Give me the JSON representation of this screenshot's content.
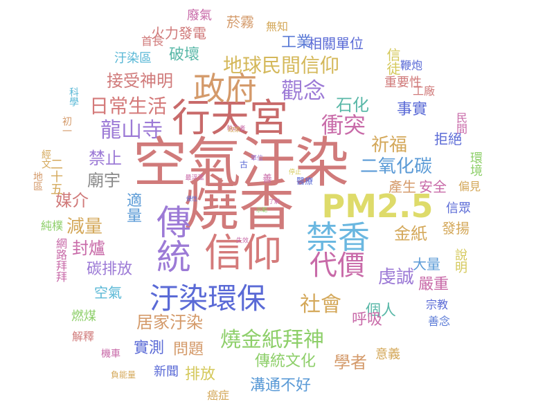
{
  "words": [
    {
      "id": "kongqi-wuran",
      "text": "空氣汙染",
      "color": "#d07a7a",
      "vertical": false
    },
    {
      "id": "shaoxiang",
      "text": "燒香",
      "color": "#d07a7a",
      "vertical": false
    },
    {
      "id": "xingtiangong",
      "text": "行天宮",
      "color": "#c86a6a",
      "vertical": false
    },
    {
      "id": "chuantong",
      "text": "傳統",
      "color": "#9c7ad6",
      "vertical": true
    },
    {
      "id": "xinyang",
      "text": "信仰",
      "color": "#d47a7a",
      "vertical": false
    },
    {
      "id": "pm25",
      "text": "PM2.5",
      "color": "#dedb6a",
      "vertical": false
    },
    {
      "id": "zhengfu",
      "text": "政府",
      "color": "#d49a6a",
      "vertical": false
    },
    {
      "id": "wuran-huanbao",
      "text": "汙染環保",
      "color": "#5a6ad6",
      "vertical": false
    },
    {
      "id": "jinxiang",
      "text": "禁香",
      "color": "#6ab7e0",
      "vertical": false
    },
    {
      "id": "daijia",
      "text": "代價",
      "color": "#c86aa8",
      "vertical": false
    },
    {
      "id": "longshansi",
      "text": "龍山寺",
      "color": "#9c7ad6",
      "vertical": false
    },
    {
      "id": "diqiu",
      "text": "地球民間信仰",
      "color": "#d4b85a",
      "vertical": false
    },
    {
      "id": "guannian",
      "text": "觀念",
      "color": "#9c7ad6",
      "vertical": false
    },
    {
      "id": "chongtu",
      "text": "衝突",
      "color": "#c86aa8",
      "vertical": false
    },
    {
      "id": "richang",
      "text": "日常生活",
      "color": "#d47a7a",
      "vertical": false
    },
    {
      "id": "shaojinzhi",
      "text": "燒金紙拜神",
      "color": "#8ecf6a",
      "vertical": false
    },
    {
      "id": "shehui",
      "text": "社會",
      "color": "#d4a85a",
      "vertical": false
    },
    {
      "id": "eryanghuatan",
      "text": "二氧化碳",
      "color": "#5a9ad6",
      "vertical": false
    },
    {
      "id": "shihua",
      "text": "石化",
      "color": "#5ab8a8",
      "vertical": false
    },
    {
      "id": "qifu",
      "text": "祈福",
      "color": "#d4a85a",
      "vertical": false
    },
    {
      "id": "shishi",
      "text": "事實",
      "color": "#5a6ad6",
      "vertical": false
    },
    {
      "id": "jieshou",
      "text": "接受神明",
      "color": "#d07a7a",
      "vertical": false
    },
    {
      "id": "pohuai",
      "text": "破壞",
      "color": "#5ab8a8",
      "vertical": false
    },
    {
      "id": "gongye",
      "text": "工業",
      "color": "#5a7ad6",
      "vertical": false
    },
    {
      "id": "xiangguan",
      "text": "相關單位",
      "color": "#5a6ad6",
      "vertical": false
    },
    {
      "id": "huoli",
      "text": "火力發電",
      "color": "#d07a7a",
      "vertical": false
    },
    {
      "id": "yanwu",
      "text": "菸霧",
      "color": "#d49a6a",
      "vertical": false
    },
    {
      "id": "feiqi",
      "text": "廢氣",
      "color": "#c86aa8",
      "vertical": false
    },
    {
      "id": "wuzhi",
      "text": "無知",
      "color": "#d4a85a",
      "vertical": false
    },
    {
      "id": "shouzhang",
      "text": "首長",
      "color": "#d07a7a",
      "vertical": false
    },
    {
      "id": "wuranqu",
      "text": "汙染區",
      "color": "#5ab8d6",
      "vertical": false
    },
    {
      "id": "xintu",
      "text": "信徒",
      "color": "#d4c85a",
      "vertical": true
    },
    {
      "id": "bianpao",
      "text": "鞭炮",
      "color": "#5a6ad6",
      "vertical": false
    },
    {
      "id": "zhongyaoxing",
      "text": "重要性",
      "color": "#d07a7a",
      "vertical": false
    },
    {
      "id": "gongchang",
      "text": "工廠",
      "color": "#d07a7a",
      "vertical": false
    },
    {
      "id": "jinzhi",
      "text": "禁止",
      "color": "#9c7ad6",
      "vertical": false
    },
    {
      "id": "miaoyu",
      "text": "廟宇",
      "color": "#8a8a8a",
      "vertical": false
    },
    {
      "id": "jujue",
      "text": "拒絕",
      "color": "#5a6ad6",
      "vertical": false
    },
    {
      "id": "chansheng",
      "text": "產生",
      "color": "#d49a6a",
      "vertical": false
    },
    {
      "id": "anquan",
      "text": "安全",
      "color": "#c86aa8",
      "vertical": false
    },
    {
      "id": "meijie",
      "text": "媒介",
      "color": "#d07a7a",
      "vertical": false
    },
    {
      "id": "jianliang",
      "text": "減量",
      "color": "#d4a85a",
      "vertical": false
    },
    {
      "id": "shiliang",
      "text": "適量",
      "color": "#5a9ad6",
      "vertical": true
    },
    {
      "id": "fenglu",
      "text": "封爐",
      "color": "#c86aa8",
      "vertical": false
    },
    {
      "id": "tanpaifang",
      "text": "碳排放",
      "color": "#9c7ad6",
      "vertical": false
    },
    {
      "id": "kongqi",
      "text": "空氣",
      "color": "#5ab8d6",
      "vertical": false
    },
    {
      "id": "jinzhi2",
      "text": "金紙",
      "color": "#d4a85a",
      "vertical": false
    },
    {
      "id": "qiancheng",
      "text": "虔誠",
      "color": "#9c7ad6",
      "vertical": false
    },
    {
      "id": "yanzhong",
      "text": "嚴重",
      "color": "#c86aa8",
      "vertical": false
    },
    {
      "id": "daliang",
      "text": "大量",
      "color": "#5a9ad6",
      "vertical": false
    },
    {
      "id": "geren",
      "text": "個人",
      "color": "#5ab8a8",
      "vertical": false
    },
    {
      "id": "huxi",
      "text": "呼吸",
      "color": "#c86aa8",
      "vertical": false
    },
    {
      "id": "zongjiao",
      "text": "宗教",
      "color": "#5a6ad6",
      "vertical": false
    },
    {
      "id": "shannian",
      "text": "善念",
      "color": "#5a7ad6",
      "vertical": false
    },
    {
      "id": "fayang",
      "text": "發揚",
      "color": "#d4a85a",
      "vertical": false
    },
    {
      "id": "xinzhong",
      "text": "信眾",
      "color": "#5a6ad6",
      "vertical": false
    },
    {
      "id": "pianjian",
      "text": "偏見",
      "color": "#d4a85a",
      "vertical": false
    },
    {
      "id": "huanjing",
      "text": "環境",
      "color": "#8ecf6a",
      "vertical": true
    },
    {
      "id": "minjian",
      "text": "民間",
      "color": "#c86aa8",
      "vertical": true
    },
    {
      "id": "shuoming",
      "text": "說明",
      "color": "#d4c85a",
      "vertical": true
    },
    {
      "id": "ranmei",
      "text": "燃煤",
      "color": "#8ecf6a",
      "vertical": false
    },
    {
      "id": "jiashi",
      "text": "居家汙染",
      "color": "#d49a6a",
      "vertical": false
    },
    {
      "id": "shice",
      "text": "實測",
      "color": "#5a6ad6",
      "vertical": false
    },
    {
      "id": "wenti",
      "text": "問題",
      "color": "#d49a6a",
      "vertical": false
    },
    {
      "id": "jieshi",
      "text": "解釋",
      "color": "#d07a7a",
      "vertical": false
    },
    {
      "id": "chuantongwenhua",
      "text": "傳統文化",
      "color": "#8ecf6a",
      "vertical": false
    },
    {
      "id": "xuezhe",
      "text": "學者",
      "color": "#d49a6a",
      "vertical": false
    },
    {
      "id": "yiyi",
      "text": "意義",
      "color": "#d4a85a",
      "vertical": false
    },
    {
      "id": "paifang",
      "text": "排放",
      "color": "#d4c85a",
      "vertical": false
    },
    {
      "id": "xinwen",
      "text": "新聞",
      "color": "#5a6ad6",
      "vertical": false
    },
    {
      "id": "goutong",
      "text": "溝通不好",
      "color": "#5a9ad6",
      "vertical": false
    },
    {
      "id": "jiche",
      "text": "機車",
      "color": "#c86aa8",
      "vertical": false
    },
    {
      "id": "fuenergy",
      "text": "負能量",
      "color": "#d4a85a",
      "vertical": false
    },
    {
      "id": "aizheng",
      "text": "癌症",
      "color": "#d4a85a",
      "vertical": false
    },
    {
      "id": "ershiwu",
      "text": "二十五",
      "color": "#d4a85a",
      "vertical": true
    },
    {
      "id": "jingwen",
      "text": "經文",
      "color": "#d4a85a",
      "vertical": true
    },
    {
      "id": "diyu",
      "text": "地區",
      "color": "#d49a6a",
      "vertical": true
    },
    {
      "id": "chuyi",
      "text": "初一",
      "color": "#d49a6a",
      "vertical": true
    },
    {
      "id": "chunpu",
      "text": "純樸",
      "color": "#8ecf6a",
      "vertical": false
    },
    {
      "id": "wanglu",
      "text": "網路拜拜",
      "color": "#c86aa8",
      "vertical": true
    },
    {
      "id": "kexue",
      "text": "科學",
      "color": "#5ab8d6",
      "vertical": true
    },
    {
      "id": "shixiao",
      "text": "失效",
      "color": "#c86aa8",
      "vertical": false
    },
    {
      "id": "yiliao",
      "text": "醫療",
      "color": "#5a6ad6",
      "vertical": false
    },
    {
      "id": "zhizheng",
      "text": "執政者",
      "color": "#c86aa8",
      "vertical": false
    },
    {
      "id": "gu",
      "text": "古",
      "color": "#5a6ad6",
      "vertical": false
    },
    {
      "id": "shan",
      "text": "善",
      "color": "#c86aa8",
      "vertical": false
    },
    {
      "id": "danwei",
      "text": "單位",
      "color": "#9c7ad6",
      "vertical": false
    },
    {
      "id": "tingzhi",
      "text": "停止",
      "color": "#d4c85a",
      "vertical": false
    },
    {
      "id": "zuihuai",
      "text": "最浮濫",
      "color": "#c86aa8",
      "vertical": false
    },
    {
      "id": "youxing",
      "text": "優性",
      "color": "#5a6ad6",
      "vertical": false
    },
    {
      "id": "liaojie",
      "text": "了解",
      "color": "#c86aa8",
      "vertical": false
    },
    {
      "id": "zhengce",
      "text": "政策",
      "color": "#d4a85a",
      "vertical": false
    },
    {
      "id": "shixiao2",
      "text": "示範",
      "color": "#8ecf6a",
      "vertical": false
    }
  ]
}
